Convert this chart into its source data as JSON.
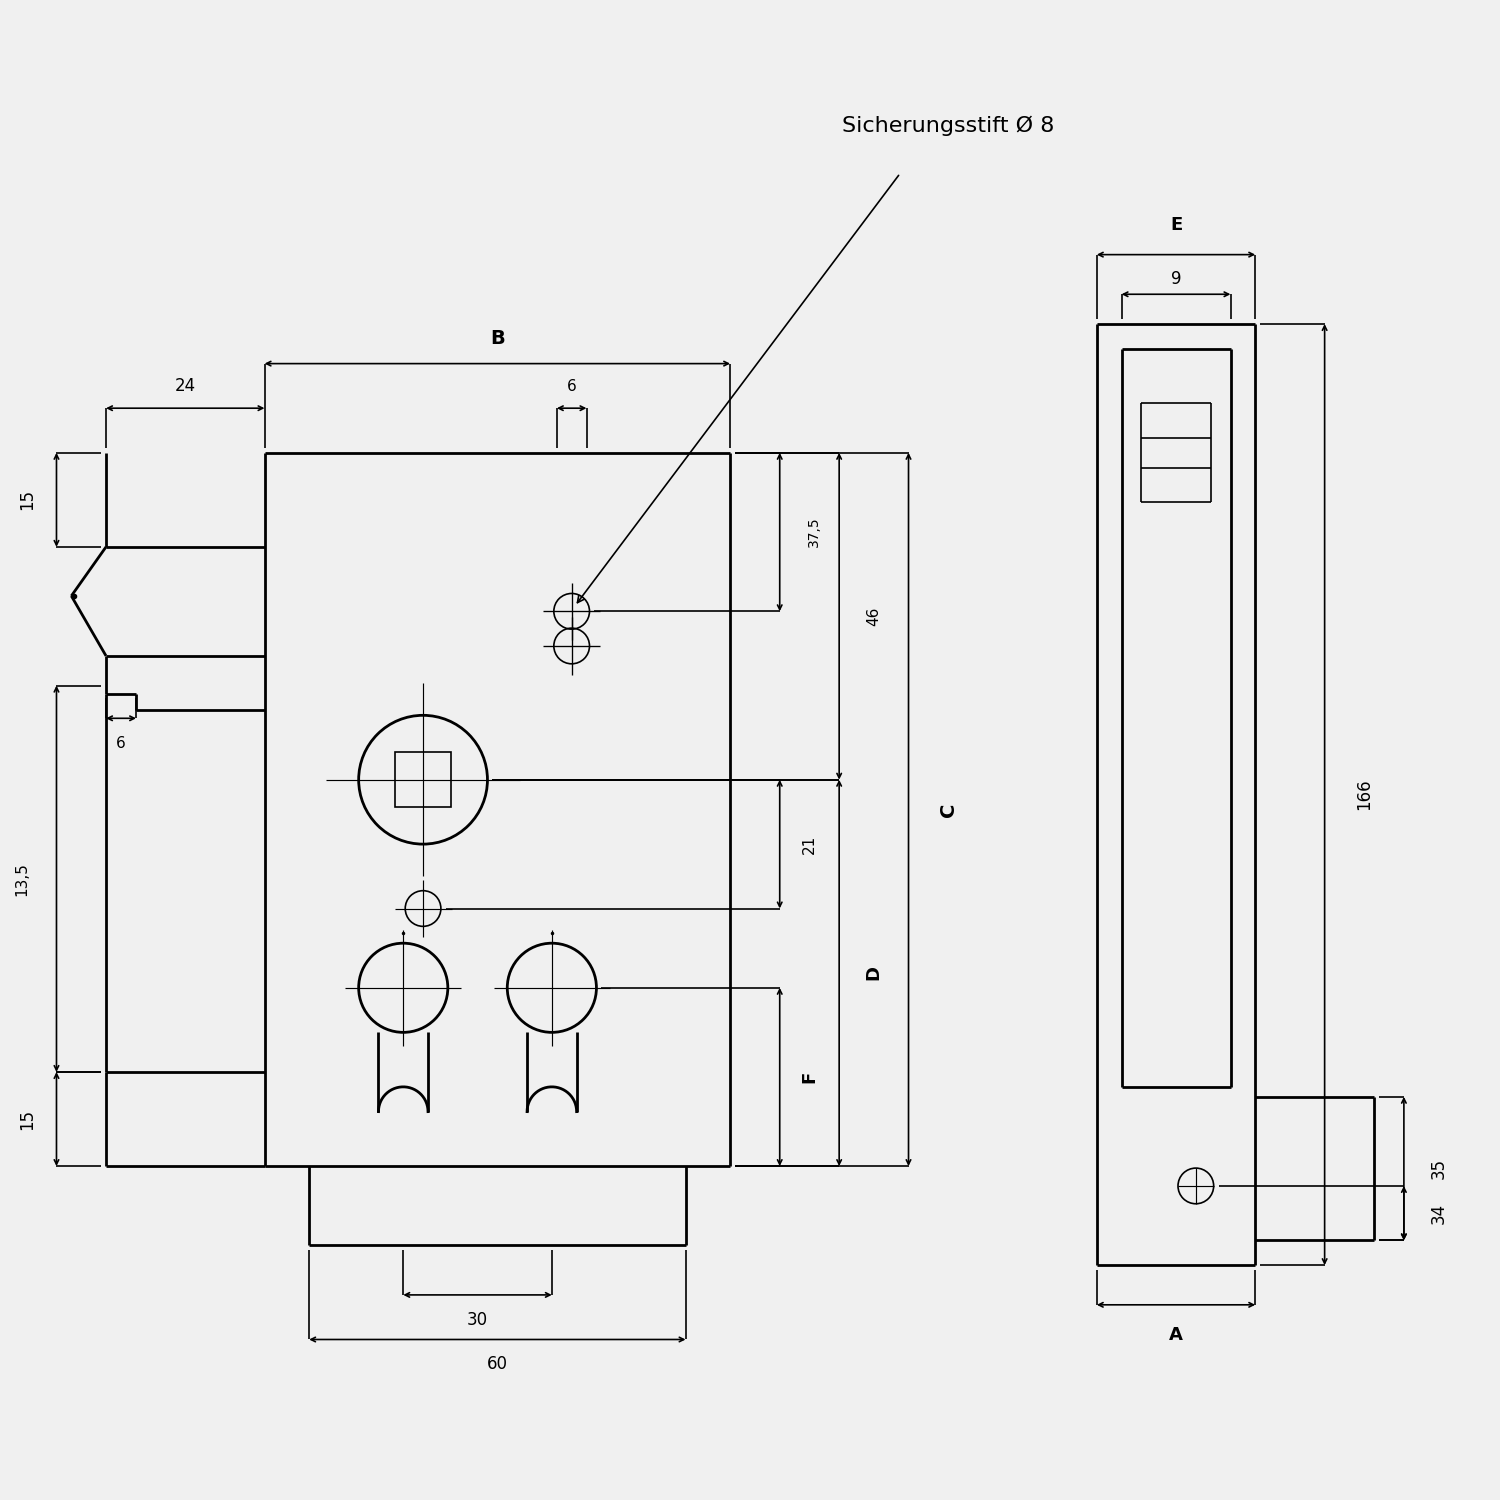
{
  "bg_color": "#f0f0f0",
  "line_color": "#000000",
  "text_color": "#000000",
  "lw": 2.0,
  "thin_lw": 1.2,
  "annotation_text": "Sicherungsstift Ø 8",
  "dim_24": "24",
  "dim_B": "B",
  "dim_6_top": "6",
  "dim_15_top": "15",
  "dim_37_5": "37,5",
  "dim_46": "46",
  "dim_21": "21",
  "dim_C": "C",
  "dim_D": "D",
  "dim_F": "F",
  "dim_13_5": "13,5",
  "dim_6_mid": "6",
  "dim_15_bot": "15",
  "dim_30": "30",
  "dim_60": "60",
  "dim_E": "E",
  "dim_9": "9",
  "dim_166": "166",
  "dim_35": "35",
  "dim_34": "34",
  "dim_A": "A"
}
